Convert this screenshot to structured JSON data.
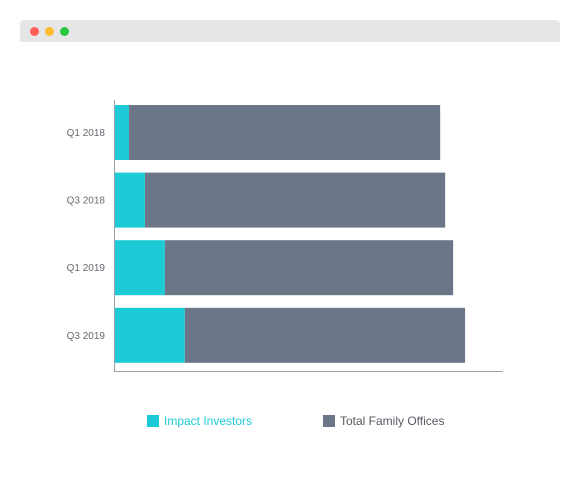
{
  "window": {
    "controls": [
      {
        "name": "close-control",
        "color": "#ff5f57"
      },
      {
        "name": "minimize-control",
        "color": "#febc2e"
      },
      {
        "name": "maximize-control",
        "color": "#28c840"
      }
    ]
  },
  "colors": {
    "impact": "#1ccbd5",
    "total": "#6b7789",
    "axis": "#9a9fa6",
    "impact_legend_text": "#1ccbd5",
    "total_legend_text": "#555a61"
  },
  "chart_data": {
    "type": "bar",
    "orientation": "horizontal",
    "stacked": true,
    "categories": [
      "Q1 2018",
      "Q3 2018",
      "Q1 2019",
      "Q3 2019"
    ],
    "series": [
      {
        "name": "Impact Investors",
        "values": [
          15,
          31,
          51,
          71
        ]
      },
      {
        "name": "Total Family Offices",
        "values": [
          312,
          301,
          289,
          281
        ]
      }
    ],
    "xlim": [
      0,
      390
    ],
    "grid": false,
    "legend_position": "bottom"
  }
}
